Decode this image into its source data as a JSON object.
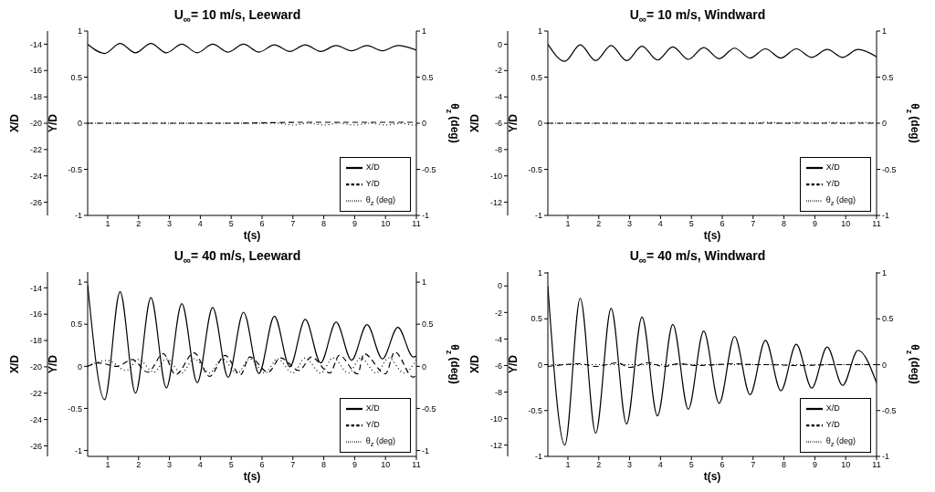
{
  "chart_data": [
    {
      "type": "line",
      "title": "U$_{∞}$= 10 m/s, Leeward",
      "xlabel": "t(s)",
      "ylabel": "Y/D",
      "y3label": "X/D",
      "y2label": "θ$_{z}$ (deg)",
      "xlim": [
        0.35,
        11
      ],
      "xticks": [
        1,
        2,
        3,
        4,
        5,
        6,
        7,
        8,
        9,
        10,
        11
      ],
      "ylim": [
        -1,
        1
      ],
      "yticks": [
        -1,
        -0.5,
        0,
        0.5,
        1
      ],
      "y2lim": [
        -1,
        1
      ],
      "y2ticks": [
        -1,
        -0.5,
        0,
        0.5,
        1
      ],
      "y3lim": [
        -27,
        -13
      ],
      "y3ticks": [
        -26,
        -24,
        -22,
        -20,
        -18,
        -16,
        -14
      ],
      "grid": false,
      "legend": "bottom right",
      "marker": "none",
      "series": [
        {
          "name": "X/D",
          "color": "#000000",
          "line_style": "solid",
          "axis": "y3",
          "x": [
            0.35,
            0.9,
            1.4,
            1.9,
            2.4,
            2.9,
            3.4,
            3.9,
            4.4,
            4.9,
            5.4,
            5.9,
            6.4,
            6.9,
            7.4,
            7.9,
            8.4,
            8.9,
            9.4,
            9.9,
            10.4,
            11
          ],
          "values": [
            -14,
            -14.7,
            -13.95,
            -14.65,
            -13.95,
            -14.65,
            -14,
            -14.65,
            -14,
            -14.6,
            -14,
            -14.6,
            -14.05,
            -14.55,
            -14.05,
            -14.55,
            -14.1,
            -14.5,
            -14.1,
            -14.5,
            -14.1,
            -14.45
          ]
        },
        {
          "name": "Y/D",
          "color": "#000000",
          "line_style": "dashed",
          "x": [
            0.35,
            5,
            7.4,
            8.4,
            9.4,
            10.4,
            11
          ],
          "values": [
            0,
            0,
            0.01,
            0.01,
            0.01,
            0.01,
            0.01
          ]
        },
        {
          "name": "θ$_{z}$ (deg)",
          "color": "#000000",
          "line_style": "dotted",
          "axis": "y2",
          "x": [
            0.35,
            4,
            6.5,
            7,
            7.5,
            8,
            8.5,
            9,
            9.5,
            10,
            10.5,
            10.9,
            11
          ],
          "values": [
            0,
            0,
            0,
            -0.02,
            0,
            -0.02,
            0,
            -0.02,
            0,
            -0.02,
            0,
            -0.02,
            -0.02
          ]
        }
      ]
    },
    {
      "type": "line",
      "title": "U$_{∞}$= 10 m/s, Windward",
      "xlabel": "t(s)",
      "ylabel": "Y/D",
      "y3label": "X/D",
      "y2label": "θ$_{z}$ (deg)",
      "xlim": [
        0.35,
        11
      ],
      "xticks": [
        1,
        2,
        3,
        4,
        5,
        6,
        7,
        8,
        9,
        10,
        11
      ],
      "ylim": [
        -1,
        1
      ],
      "yticks": [
        -1,
        -0.5,
        0,
        0.5,
        1
      ],
      "y2lim": [
        -1,
        1
      ],
      "y2ticks": [
        -1,
        -0.5,
        0,
        0.5,
        1
      ],
      "y3lim": [
        -13,
        1
      ],
      "y3ticks": [
        -12,
        -10,
        -8,
        -6,
        -4,
        -2,
        0
      ],
      "grid": false,
      "legend": "bottom right",
      "marker": "none",
      "series": [
        {
          "name": "X/D",
          "color": "#000000",
          "line_style": "solid",
          "axis": "y3",
          "x": [
            0.35,
            0.9,
            1.4,
            1.9,
            2.4,
            2.9,
            3.4,
            3.9,
            4.4,
            4.9,
            5.4,
            5.9,
            6.4,
            6.9,
            7.4,
            7.9,
            8.4,
            8.9,
            9.4,
            9.9,
            10.4,
            11
          ],
          "values": [
            0,
            -1.3,
            -0.05,
            -1.25,
            -0.1,
            -1.25,
            -0.15,
            -1.2,
            -0.2,
            -1.15,
            -0.25,
            -1.1,
            -0.3,
            -1.05,
            -0.35,
            -1.05,
            -0.35,
            -1,
            -0.4,
            -1,
            -0.4,
            -0.95
          ]
        },
        {
          "name": "Y/D",
          "color": "#000000",
          "line_style": "dashed",
          "x": [
            0.35,
            11
          ],
          "values": [
            0,
            0
          ]
        },
        {
          "name": "θ$_{z}$ (deg)",
          "color": "#000000",
          "line_style": "dotted",
          "axis": "y2",
          "x": [
            0.35,
            7,
            7.5,
            8,
            8.5,
            9,
            9.5,
            10,
            10.5,
            11
          ],
          "values": [
            0,
            0,
            0.01,
            0,
            0.01,
            0,
            0.01,
            0,
            0.01,
            0
          ]
        }
      ]
    },
    {
      "type": "line",
      "title": "U$_{∞}$= 40 m/s, Leeward",
      "xlabel": "t(s)",
      "ylabel": "Y/D",
      "y3label": "X/D",
      "y2label": "θ$_{z}$ (deg)",
      "xlim": [
        0.35,
        11
      ],
      "xticks": [
        1,
        2,
        3,
        4,
        5,
        6,
        7,
        8,
        9,
        10,
        11
      ],
      "ylim": [
        -1.07,
        1.12
      ],
      "yticks": [
        -1,
        -0.5,
        0,
        0.5,
        1
      ],
      "y2lim": [
        -1.07,
        1.12
      ],
      "y2ticks": [
        -1,
        -0.5,
        0,
        0.5,
        1
      ],
      "y3lim": [
        -26.8,
        -12.8
      ],
      "y3ticks": [
        -26,
        -24,
        -22,
        -20,
        -18,
        -16,
        -14
      ],
      "grid": false,
      "legend": "bottom right",
      "marker": "none",
      "series": [
        {
          "name": "X/D",
          "color": "#000000",
          "line_style": "solid",
          "axis": "y3",
          "x": [
            0.35,
            0.9,
            1.4,
            1.9,
            2.4,
            2.9,
            3.4,
            3.9,
            4.4,
            4.9,
            5.4,
            5.9,
            6.4,
            6.9,
            7.4,
            7.9,
            8.4,
            8.9,
            9.4,
            9.9,
            10.4,
            10.9,
            11
          ],
          "values": [
            -13.75,
            -22.5,
            -14.3,
            -22,
            -14.75,
            -21.6,
            -15.2,
            -21.2,
            -15.5,
            -20.8,
            -15.85,
            -20.5,
            -16.15,
            -20,
            -16.4,
            -19.7,
            -16.6,
            -19.5,
            -16.8,
            -19.4,
            -17,
            -19.25,
            -19.2
          ]
        },
        {
          "name": "Y/D",
          "color": "#000000",
          "line_style": "dashed",
          "x": [
            0.35,
            0.7,
            1.3,
            1.8,
            2.3,
            2.8,
            3.2,
            3.8,
            4.3,
            4.8,
            5.3,
            5.6,
            6.2,
            6.6,
            7.2,
            7.6,
            8.2,
            8.5,
            9.1,
            9.3,
            10,
            10.3,
            10.9,
            11
          ],
          "values": [
            0,
            0.04,
            0,
            0.08,
            -0.07,
            0.15,
            -0.1,
            0.16,
            -0.12,
            0.13,
            -0.1,
            0.11,
            -0.07,
            0.1,
            -0.05,
            0.11,
            -0.08,
            0.13,
            -0.09,
            0.15,
            -0.09,
            0.17,
            -0.13,
            -0.1
          ]
        },
        {
          "name": "θ$_{z}$ (deg)",
          "color": "#000000",
          "line_style": "dotted",
          "axis": "y2",
          "x": [
            0.35,
            1,
            1.6,
            2,
            2.5,
            2.9,
            3.4,
            3.8,
            4.3,
            4.7,
            5.2,
            5.6,
            6.1,
            6.5,
            7,
            7.4,
            7.9,
            8.3,
            8.8,
            9.2,
            9.7,
            10.1,
            10.6,
            11
          ],
          "values": [
            0,
            0.07,
            -0.05,
            0.08,
            -0.07,
            0.09,
            -0.08,
            0.09,
            -0.08,
            0.09,
            -0.08,
            0.09,
            -0.08,
            0.09,
            -0.08,
            0.1,
            -0.08,
            0.1,
            -0.08,
            0.1,
            -0.08,
            0.1,
            -0.08,
            0.08
          ]
        }
      ]
    },
    {
      "type": "line",
      "title": "U$_{∞}$= 40 m/s, Windward",
      "xlabel": "t(s)",
      "ylabel": "Y/D",
      "y3label": "X/D",
      "y2label": "θ$_{z}$ (deg)",
      "xlim": [
        0.35,
        11
      ],
      "xticks": [
        1,
        2,
        3,
        4,
        5,
        6,
        7,
        8,
        9,
        10,
        11
      ],
      "ylim": [
        -1,
        1.01
      ],
      "yticks": [
        -1,
        -0.5,
        0,
        0.5,
        1
      ],
      "y2lim": [
        -1,
        1.01
      ],
      "y2ticks": [
        -1,
        -0.5,
        0,
        0.5,
        1
      ],
      "y3lim": [
        -12.85,
        1.05
      ],
      "y3ticks": [
        -12,
        -10,
        -8,
        -6,
        -4,
        -2,
        0
      ],
      "grid": false,
      "legend": "bottom right",
      "marker": "none",
      "series": [
        {
          "name": "X/D",
          "color": "#000000",
          "line_style": "solid",
          "axis": "y3",
          "x": [
            0.35,
            0.9,
            1.4,
            1.9,
            2.4,
            2.9,
            3.4,
            3.9,
            4.4,
            4.9,
            5.4,
            5.9,
            6.4,
            6.9,
            7.4,
            7.9,
            8.4,
            8.9,
            9.4,
            9.9,
            10.4,
            11
          ],
          "values": [
            0,
            -12,
            -0.93,
            -11.1,
            -1.7,
            -10.4,
            -2.35,
            -9.8,
            -2.9,
            -9.3,
            -3.4,
            -8.85,
            -3.8,
            -8.2,
            -4.1,
            -7.9,
            -4.4,
            -7.7,
            -4.6,
            -7.5,
            -4.85,
            -7.3
          ]
        },
        {
          "name": "Y/D",
          "color": "#000000",
          "line_style": "dashed",
          "x": [
            0.35,
            1.4,
            1.9,
            2.6,
            3,
            3.6,
            4.1,
            4.6,
            5.2,
            5.8,
            6.4,
            7,
            7.5,
            8.5,
            9.5,
            11
          ],
          "values": [
            -0.02,
            0.01,
            -0.02,
            0.02,
            -0.03,
            0.02,
            -0.02,
            0.01,
            -0.01,
            0,
            0.01,
            0,
            0,
            -0.01,
            0,
            0
          ]
        },
        {
          "name": "θ$_{z}$ (deg)",
          "color": "#000000",
          "line_style": "dotted",
          "axis": "y2",
          "x": [
            0.35,
            11
          ],
          "values": [
            0,
            0
          ]
        }
      ]
    }
  ]
}
